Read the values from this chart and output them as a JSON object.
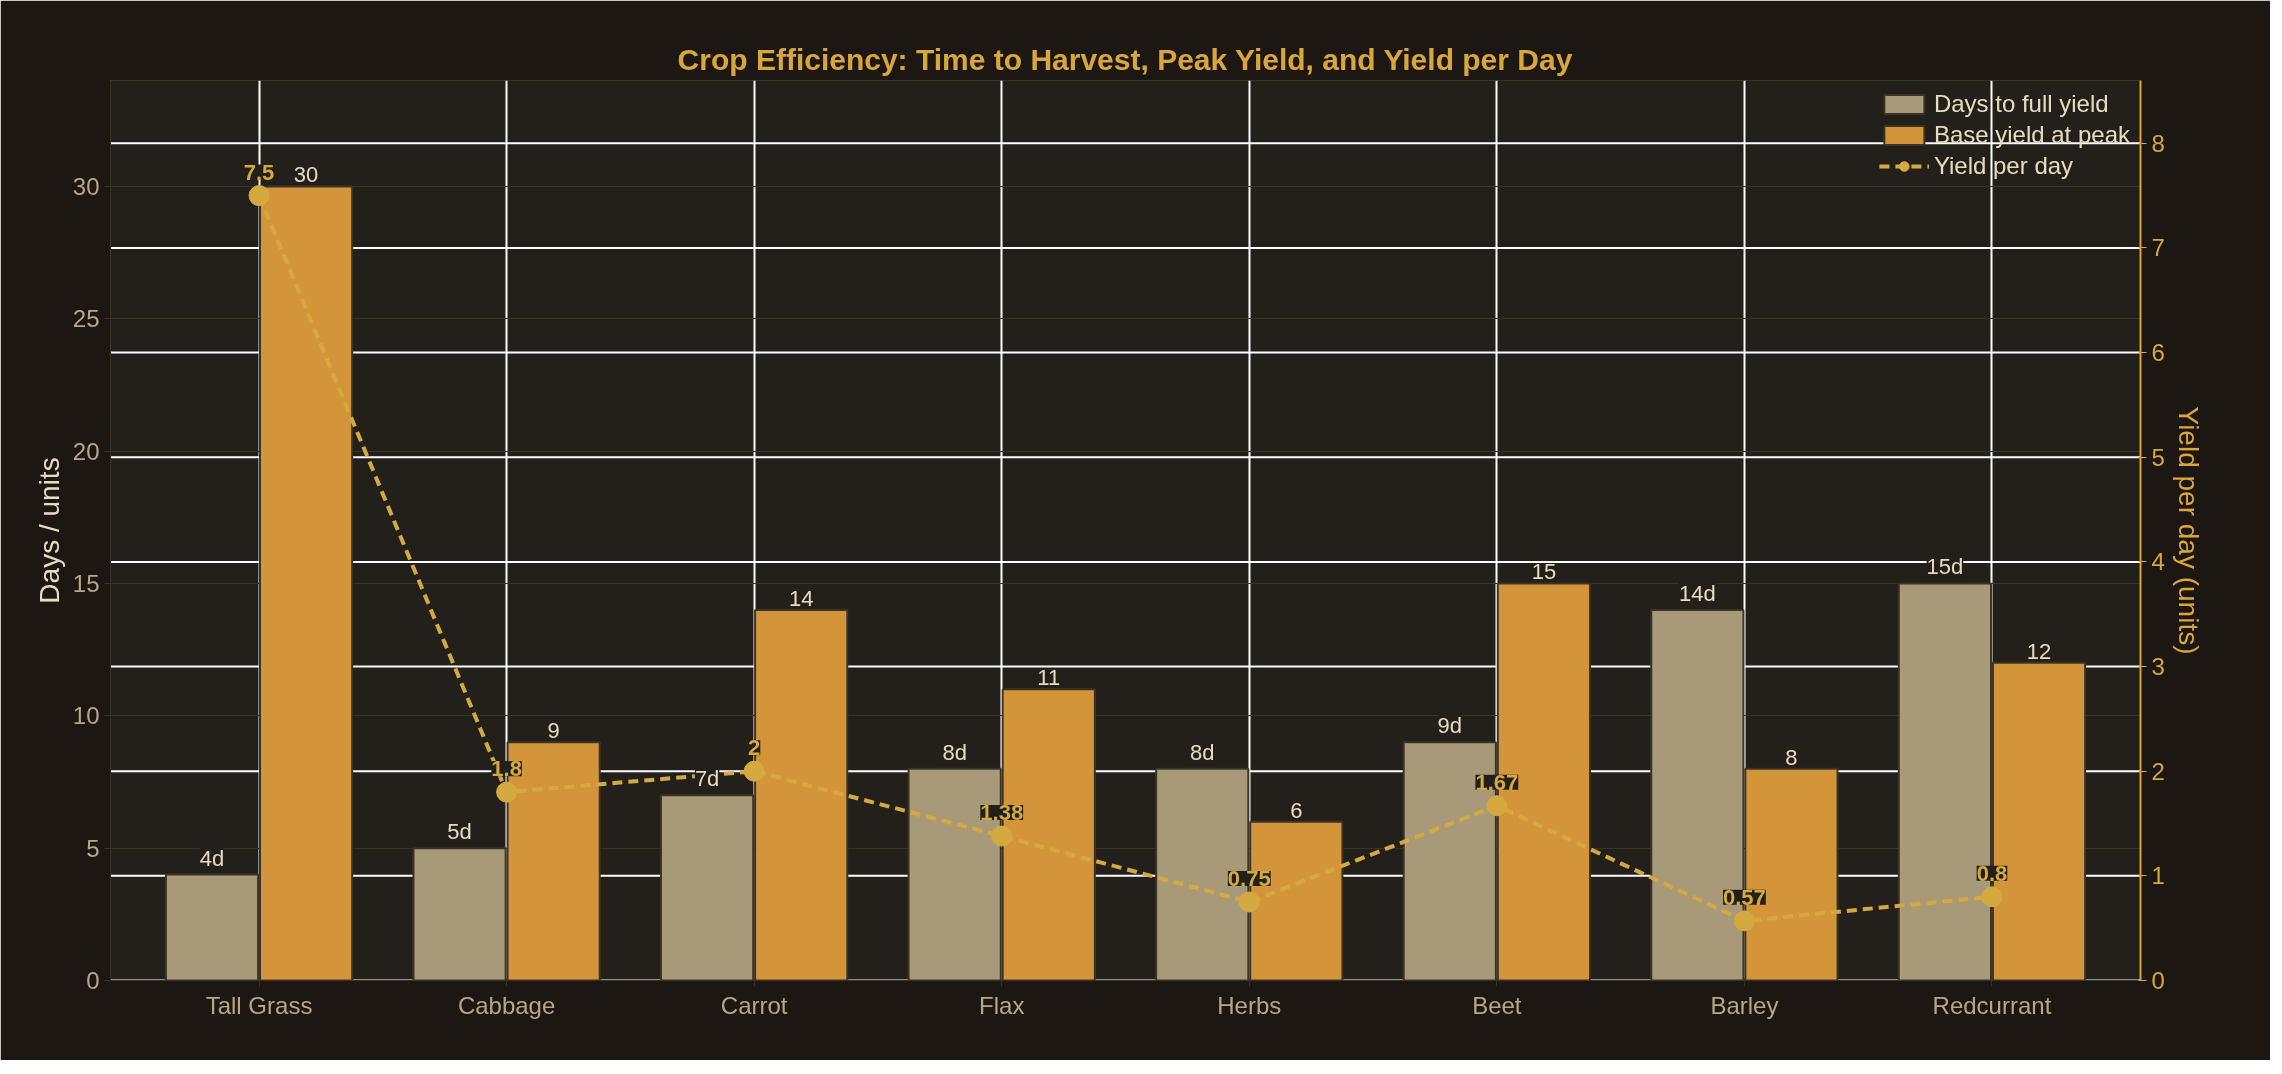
{
  "chart_data": {
    "type": "bar",
    "title": "Crop Efficiency: Time to Harvest, Peak Yield, and Yield per Day",
    "categories": [
      "Tall Grass",
      "Cabbage",
      "Carrot",
      "Flax",
      "Herbs",
      "Beet",
      "Barley",
      "Redcurrant"
    ],
    "ylabel": "Days / units",
    "y2label": "Yield per day (units)",
    "ylim": [
      0,
      34
    ],
    "yticks": [
      0,
      5,
      10,
      15,
      20,
      25,
      30
    ],
    "y2lim": [
      0,
      8.6
    ],
    "y2ticks": [
      0,
      1,
      2,
      3,
      4,
      5,
      6,
      7,
      8
    ],
    "series": [
      {
        "name": "Days to full yield",
        "color": "#a89a78",
        "values": [
          4,
          5,
          7,
          8,
          8,
          9,
          14,
          15
        ],
        "value_labels": [
          "4d",
          "5d",
          "7d",
          "8d",
          "8d",
          "9d",
          "14d",
          "15d"
        ]
      },
      {
        "name": "Base yield at peak",
        "color": "#d4953a",
        "values": [
          30,
          9,
          14,
          11,
          6,
          15,
          8,
          12
        ],
        "value_labels": [
          "30",
          "9",
          "14",
          "11",
          "6",
          "15",
          "8",
          "12"
        ]
      },
      {
        "name": "Yield per day",
        "type": "line",
        "axis": "y2",
        "color": "#d4aa40",
        "values": [
          7.5,
          1.8,
          2,
          1.38,
          0.75,
          1.67,
          0.57,
          0.8
        ],
        "value_labels": [
          "7.5",
          "1.8",
          "2",
          "1.38",
          "0.75",
          "1.67",
          "0.57",
          "0.8"
        ],
        "marker": "circle",
        "line_style": "dashed"
      }
    ],
    "grid": true,
    "legend": "top right"
  }
}
